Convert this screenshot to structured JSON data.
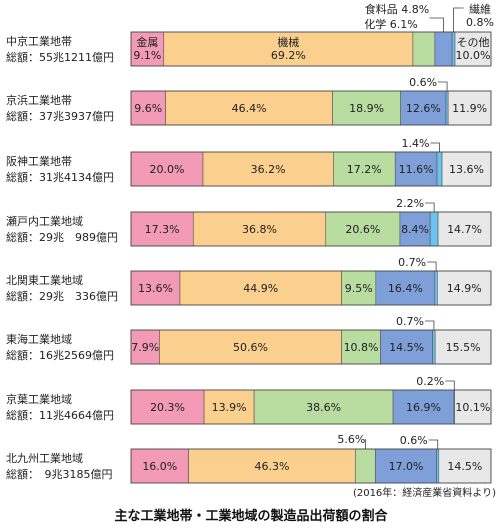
{
  "chart_data": {
    "type": "stacked-bar-horizontal",
    "unit": "%",
    "categories": [
      "金属",
      "機械",
      "化学",
      "食料品",
      "繊維",
      "その他"
    ],
    "colors": [
      "#f29ab6",
      "#fbd08f",
      "#b9dca1",
      "#7f9fd9",
      "#6cc3ee",
      "#e8e8e8"
    ],
    "rows": [
      {
        "name": "中京工業地帯",
        "total": "総額：55兆1211億円",
        "values": [
          9.1,
          69.2,
          6.1,
          4.8,
          0.8,
          10.0
        ]
      },
      {
        "name": "京浜工業地帯",
        "total": "総額：37兆3937億円",
        "values": [
          9.6,
          46.4,
          18.9,
          12.6,
          0.6,
          11.9
        ]
      },
      {
        "name": "阪神工業地帯",
        "total": "総額：31兆4134億円",
        "values": [
          20.0,
          36.2,
          17.2,
          11.6,
          1.4,
          13.6
        ]
      },
      {
        "name": "瀬戸内工業地域",
        "total": "総額：29兆　989億円",
        "values": [
          17.3,
          36.8,
          20.6,
          8.4,
          2.2,
          14.7
        ]
      },
      {
        "name": "北関東工業地域",
        "total": "総額：29兆　336億円",
        "values": [
          13.6,
          44.9,
          9.5,
          16.4,
          0.7,
          14.9
        ]
      },
      {
        "name": "東海工業地域",
        "total": "総額：16兆2569億円",
        "values": [
          7.9,
          50.6,
          10.8,
          14.5,
          0.7,
          15.5
        ]
      },
      {
        "name": "京葉工業地域",
        "total": "総額：11兆4664億円",
        "values": [
          20.3,
          13.9,
          38.6,
          16.9,
          0.2,
          10.1
        ]
      },
      {
        "name": "北九州工業地域",
        "total": "総額：　9兆3185億円",
        "values": [
          16.0,
          46.3,
          5.6,
          17.0,
          0.6,
          14.5
        ]
      }
    ],
    "segment_labels": [
      [
        "金属\n9.1%",
        "機械\n69.2%",
        "",
        "",
        "",
        "その他\n10.0%"
      ],
      [
        "9.6%",
        "46.4%",
        "18.9%",
        "12.6%",
        "",
        "11.9%"
      ],
      [
        "20.0%",
        "36.2%",
        "17.2%",
        "11.6%",
        "",
        "13.6%"
      ],
      [
        "17.3%",
        "36.8%",
        "20.6%",
        "8.4%",
        "",
        "14.7%"
      ],
      [
        "13.6%",
        "44.9%",
        "9.5%",
        "16.4%",
        "",
        "14.9%"
      ],
      [
        "7.9%",
        "50.6%",
        "10.8%",
        "14.5%",
        "",
        "15.5%"
      ],
      [
        "20.3%",
        "13.9%",
        "38.6%",
        "16.9%",
        "",
        "10.1%"
      ],
      [
        "16.0%",
        "46.3%",
        "",
        "17.0%",
        "",
        "14.5%"
      ]
    ],
    "callouts": [
      {
        "row": 0,
        "segment": 3,
        "text": "食料品 4.8%"
      },
      {
        "row": 0,
        "segment": 2,
        "text": "化学 6.1%"
      },
      {
        "row": 0,
        "segment": 4,
        "text": "繊維\n0.8%"
      },
      {
        "row": 1,
        "segment": 4,
        "text": "0.6%"
      },
      {
        "row": 2,
        "segment": 4,
        "text": "1.4%"
      },
      {
        "row": 3,
        "segment": 4,
        "text": "2.2%"
      },
      {
        "row": 4,
        "segment": 4,
        "text": "0.7%"
      },
      {
        "row": 5,
        "segment": 4,
        "text": "0.7%"
      },
      {
        "row": 6,
        "segment": 4,
        "text": "0.2%"
      },
      {
        "row": 7,
        "segment": 2,
        "text": "5.6%"
      },
      {
        "row": 7,
        "segment": 4,
        "text": "0.6%"
      }
    ]
  },
  "source_note": "(2016年：経済産業省資料より)",
  "caption": "主な工業地帯・工業地域の製造品出荷額の割合"
}
